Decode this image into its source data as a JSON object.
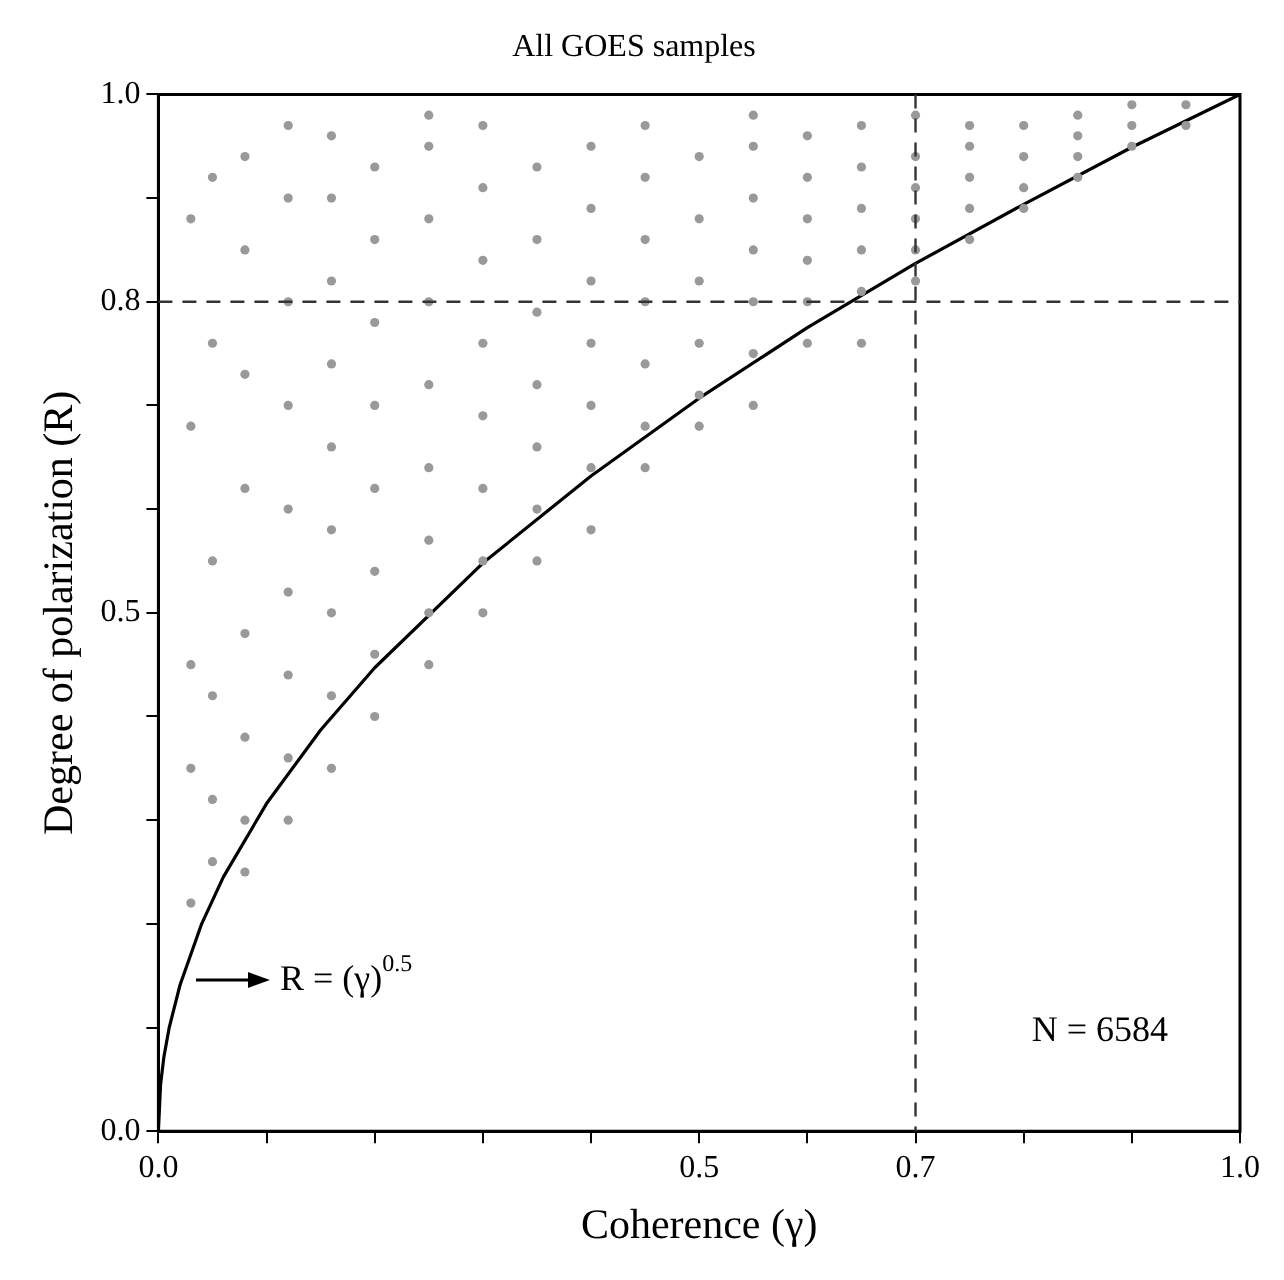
{
  "chart_data": {
    "type": "scatter",
    "title": "All GOES samples",
    "xlabel": "Coherence (γ)",
    "ylabel": "Degree of polarization (R)",
    "xlim": [
      0,
      1
    ],
    "ylim": [
      0,
      1
    ],
    "xticks": [
      {
        "value": 0,
        "label": "0.0"
      },
      {
        "value": 0.1,
        "label": null
      },
      {
        "value": 0.2,
        "label": null
      },
      {
        "value": 0.3,
        "label": null
      },
      {
        "value": 0.4,
        "label": null
      },
      {
        "value": 0.5,
        "label": "0.5"
      },
      {
        "value": 0.6,
        "label": null
      },
      {
        "value": 0.7,
        "label": "0.7"
      },
      {
        "value": 0.8,
        "label": null
      },
      {
        "value": 0.9,
        "label": null
      },
      {
        "value": 1,
        "label": "1.0"
      }
    ],
    "yticks": [
      {
        "value": 0,
        "label": "0.0"
      },
      {
        "value": 0.1,
        "label": null
      },
      {
        "value": 0.2,
        "label": null
      },
      {
        "value": 0.3,
        "label": null
      },
      {
        "value": 0.4,
        "label": null
      },
      {
        "value": 0.5,
        "label": "0.5"
      },
      {
        "value": 0.6,
        "label": null
      },
      {
        "value": 0.7,
        "label": null
      },
      {
        "value": 0.8,
        "label": "0.8"
      },
      {
        "value": 0.9,
        "label": null
      },
      {
        "value": 1,
        "label": "1.0"
      }
    ],
    "grid": false,
    "legend": false,
    "marker": "circle",
    "series": [
      {
        "color": "#999999",
        "x": [
          0.03,
          0.03,
          0.03,
          0.03,
          0.03,
          0.05,
          0.05,
          0.05,
          0.05,
          0.05,
          0.05,
          0.08,
          0.08,
          0.08,
          0.08,
          0.08,
          0.08,
          0.08,
          0.08,
          0.12,
          0.12,
          0.12,
          0.12,
          0.12,
          0.12,
          0.12,
          0.12,
          0.12,
          0.16,
          0.16,
          0.16,
          0.16,
          0.16,
          0.16,
          0.16,
          0.16,
          0.16,
          0.2,
          0.2,
          0.2,
          0.2,
          0.2,
          0.2,
          0.2,
          0.2,
          0.25,
          0.25,
          0.25,
          0.25,
          0.25,
          0.25,
          0.25,
          0.25,
          0.25,
          0.3,
          0.3,
          0.3,
          0.3,
          0.3,
          0.3,
          0.3,
          0.3,
          0.35,
          0.35,
          0.35,
          0.35,
          0.35,
          0.35,
          0.35,
          0.4,
          0.4,
          0.4,
          0.4,
          0.4,
          0.4,
          0.4,
          0.45,
          0.45,
          0.45,
          0.45,
          0.45,
          0.45,
          0.45,
          0.5,
          0.5,
          0.5,
          0.5,
          0.5,
          0.5,
          0.55,
          0.55,
          0.55,
          0.55,
          0.55,
          0.55,
          0.55,
          0.6,
          0.6,
          0.6,
          0.6,
          0.6,
          0.6,
          0.65,
          0.65,
          0.65,
          0.65,
          0.65,
          0.65,
          0.7,
          0.7,
          0.7,
          0.7,
          0.7,
          0.7,
          0.75,
          0.75,
          0.75,
          0.75,
          0.75,
          0.8,
          0.8,
          0.8,
          0.8,
          0.85,
          0.85,
          0.85,
          0.85,
          0.9,
          0.9,
          0.9,
          0.95,
          0.95
        ],
        "values": [
          0.22,
          0.35,
          0.45,
          0.68,
          0.88,
          0.26,
          0.32,
          0.42,
          0.55,
          0.76,
          0.92,
          0.25,
          0.3,
          0.38,
          0.48,
          0.62,
          0.73,
          0.85,
          0.94,
          0.3,
          0.36,
          0.44,
          0.52,
          0.6,
          0.7,
          0.8,
          0.9,
          0.97,
          0.35,
          0.42,
          0.5,
          0.58,
          0.66,
          0.74,
          0.82,
          0.9,
          0.96,
          0.4,
          0.46,
          0.54,
          0.62,
          0.7,
          0.78,
          0.86,
          0.93,
          0.45,
          0.5,
          0.57,
          0.64,
          0.72,
          0.8,
          0.88,
          0.95,
          0.98,
          0.5,
          0.55,
          0.62,
          0.69,
          0.76,
          0.84,
          0.91,
          0.97,
          0.55,
          0.6,
          0.66,
          0.72,
          0.79,
          0.86,
          0.93,
          0.58,
          0.64,
          0.7,
          0.76,
          0.82,
          0.89,
          0.95,
          0.64,
          0.68,
          0.74,
          0.8,
          0.86,
          0.92,
          0.97,
          0.68,
          0.71,
          0.76,
          0.82,
          0.88,
          0.94,
          0.7,
          0.75,
          0.8,
          0.85,
          0.9,
          0.95,
          0.98,
          0.76,
          0.8,
          0.84,
          0.88,
          0.92,
          0.96,
          0.76,
          0.81,
          0.85,
          0.89,
          0.93,
          0.97,
          0.82,
          0.85,
          0.88,
          0.91,
          0.94,
          0.98,
          0.86,
          0.89,
          0.92,
          0.95,
          0.97,
          0.89,
          0.91,
          0.94,
          0.97,
          0.92,
          0.94,
          0.96,
          0.98,
          0.95,
          0.97,
          0.99,
          0.97,
          0.99
        ]
      },
      {
        "type": "line",
        "color": "#000000",
        "marker": "none",
        "x": [
          0,
          0.002,
          0.005,
          0.01,
          0.02,
          0.04,
          0.06,
          0.1,
          0.15,
          0.2,
          0.3,
          0.4,
          0.5,
          0.6,
          0.7,
          0.8,
          0.9,
          1
        ],
        "values": [
          0,
          0.045,
          0.071,
          0.1,
          0.141,
          0.2,
          0.245,
          0.316,
          0.387,
          0.447,
          0.548,
          0.632,
          0.707,
          0.775,
          0.837,
          0.894,
          0.949,
          1
        ]
      }
    ],
    "ref_lines": [
      {
        "axis": "y",
        "value": 0.8,
        "color": "#333333",
        "line_style": "dashed"
      },
      {
        "axis": "x",
        "value": 0.7,
        "color": "#333333",
        "line_style": "dashed"
      }
    ],
    "annotations": [
      {
        "text": "R = (γ)$^{0.5}$",
        "x": 0.02,
        "y": 0.145
      },
      "N = 6584"
    ]
  }
}
